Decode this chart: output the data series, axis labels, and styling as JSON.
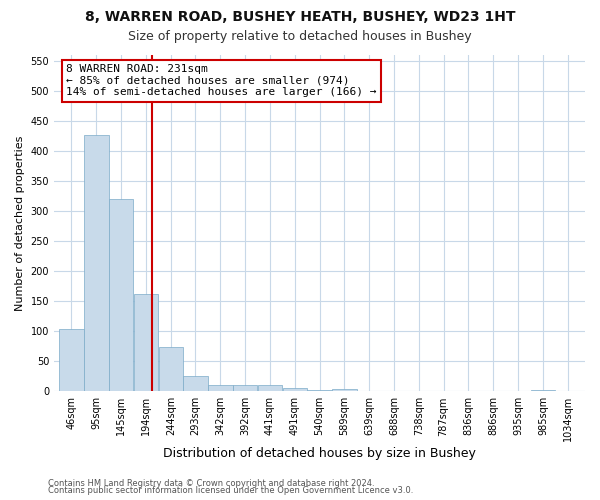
{
  "title1": "8, WARREN ROAD, BUSHEY HEATH, BUSHEY, WD23 1HT",
  "title2": "Size of property relative to detached houses in Bushey",
  "xlabel": "Distribution of detached houses by size in Bushey",
  "ylabel": "Number of detached properties",
  "footer1": "Contains HM Land Registry data © Crown copyright and database right 2024.",
  "footer2": "Contains public sector information licensed under the Open Government Licence v3.0.",
  "bar_color": "#c8daea",
  "bar_edge_color": "#7baac8",
  "grid_color": "#c8d8e8",
  "annotation_text": "8 WARREN ROAD: 231sqm\n← 85% of detached houses are smaller (974)\n14% of semi-detached houses are larger (166) →",
  "annotation_box_color": "#ffffff",
  "annotation_box_edge": "#cc0000",
  "vline_color": "#cc0000",
  "vline_x": 231,
  "categories": [
    "46sqm",
    "95sqm",
    "145sqm",
    "194sqm",
    "244sqm",
    "293sqm",
    "342sqm",
    "392sqm",
    "441sqm",
    "491sqm",
    "540sqm",
    "589sqm",
    "639sqm",
    "688sqm",
    "738sqm",
    "787sqm",
    "836sqm",
    "886sqm",
    "935sqm",
    "985sqm",
    "1034sqm"
  ],
  "bin_edges": [
    46,
    95,
    145,
    194,
    244,
    293,
    342,
    392,
    441,
    491,
    540,
    589,
    639,
    688,
    738,
    787,
    836,
    886,
    935,
    985,
    1034,
    1083
  ],
  "values": [
    104,
    427,
    320,
    162,
    74,
    26,
    10,
    11,
    10,
    5,
    2,
    4,
    0,
    0,
    0,
    0,
    0,
    0,
    0,
    2,
    0
  ],
  "ylim": [
    0,
    560
  ],
  "yticks": [
    0,
    50,
    100,
    150,
    200,
    250,
    300,
    350,
    400,
    450,
    500,
    550
  ],
  "background_color": "#ffffff",
  "plot_bg_color": "#ffffff",
  "title_fontsize": 10,
  "subtitle_fontsize": 9,
  "ylabel_fontsize": 8,
  "xlabel_fontsize": 9,
  "tick_fontsize": 7,
  "footer_fontsize": 6,
  "annot_fontsize": 8
}
